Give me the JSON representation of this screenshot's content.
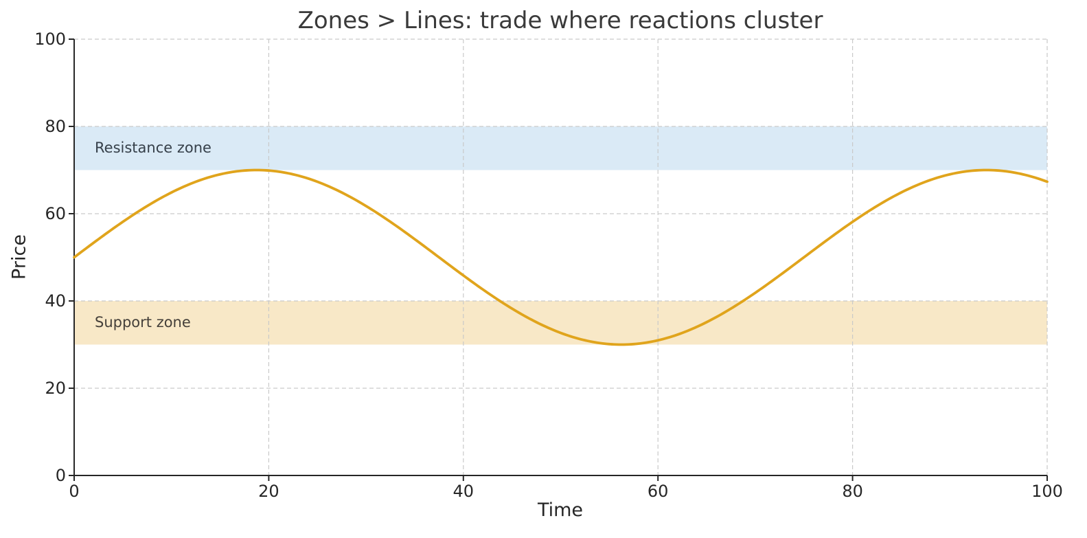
{
  "chart_data": {
    "type": "line",
    "title": "Zones > Lines: trade where reactions cluster",
    "xlabel": "Time",
    "ylabel": "Price",
    "xlim": [
      0,
      100
    ],
    "ylim": [
      0,
      100
    ],
    "xticks": [
      0,
      20,
      40,
      60,
      80,
      100
    ],
    "yticks": [
      0,
      20,
      40,
      60,
      80,
      100
    ],
    "grid": {
      "visible": true,
      "style": "dashed",
      "color": "#c9c9c9"
    },
    "legend": "none",
    "colors": {
      "curve": "#e0a41c",
      "resistance_fill": "#daeaf6",
      "support_fill": "#f8e8c7",
      "axis": "#262626",
      "title_text": "#3a3a3a",
      "tick_text": "#262626"
    },
    "zones": [
      {
        "label": "Resistance zone",
        "y_from": 70,
        "y_to": 80,
        "fill": "#daeaf6"
      },
      {
        "label": "Support zone",
        "y_from": 30,
        "y_to": 40,
        "fill": "#f8e8c7"
      }
    ],
    "series": [
      {
        "name": "price",
        "color": "#e0a41c",
        "line_width": 3.8,
        "model": {
          "baseline": 50,
          "amplitude": 20,
          "period": 75
        },
        "x": [
          0,
          5,
          10,
          15,
          20,
          25,
          30,
          35,
          40,
          45,
          50,
          55,
          60,
          65,
          70,
          75,
          80,
          85,
          90,
          95,
          100
        ],
        "y": [
          50.0,
          58.13,
          64.86,
          69.02,
          69.89,
          67.32,
          61.76,
          54.16,
          45.84,
          38.24,
          32.68,
          30.11,
          30.98,
          35.14,
          41.87,
          50.0,
          58.13,
          64.86,
          69.02,
          69.89,
          67.32
        ]
      }
    ]
  }
}
